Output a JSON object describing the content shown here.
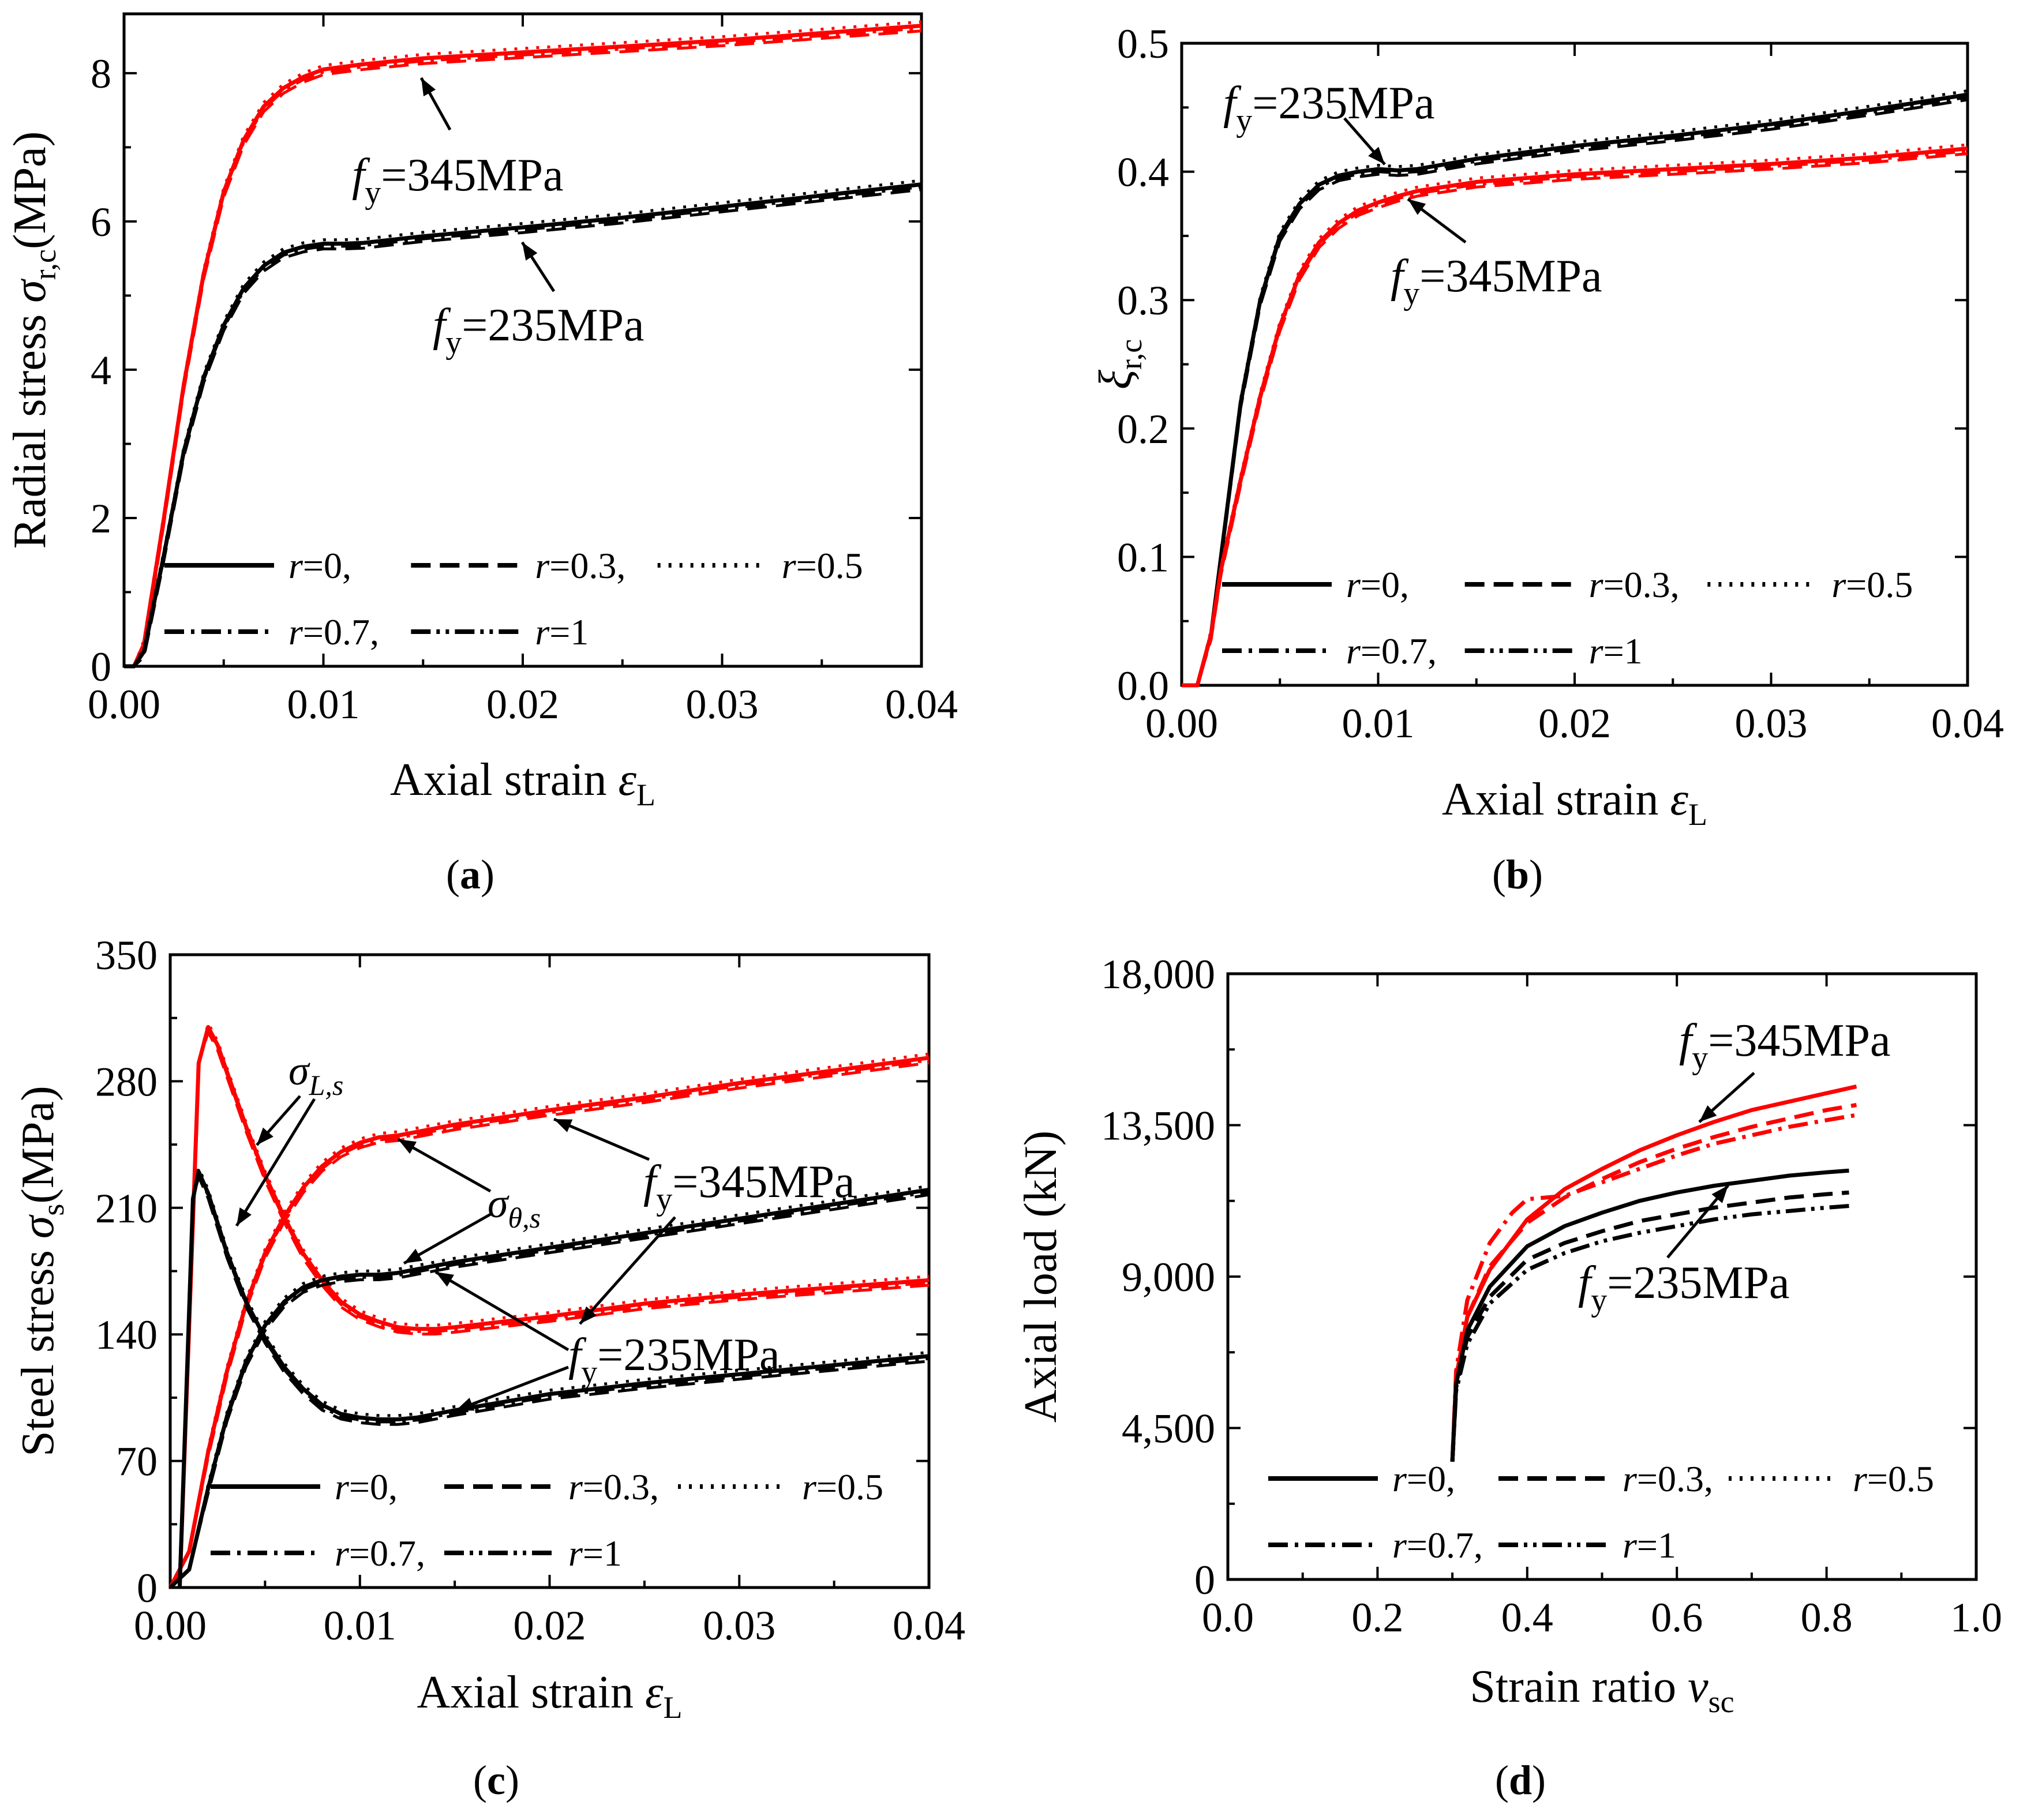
{
  "colors": {
    "black": "#000000",
    "red": "#ff0000"
  },
  "chart_data": [
    {
      "id": "a",
      "type": "line",
      "panel_label": "a",
      "xlabel": "Axial strain ",
      "xlabel_symbol": "ε",
      "xlabel_sub": "L",
      "ylabel": "Radial stress ",
      "ylabel_symbol": "σ",
      "ylabel_sub": "r,c",
      "ylabel_unit": "(MPa)",
      "xlim": [
        0,
        0.04
      ],
      "ylim": [
        0,
        8.8
      ],
      "xticks": [
        0,
        0.01,
        0.02,
        0.03,
        0.04
      ],
      "xtick_labels": [
        "0.00",
        "0.01",
        "0.02",
        "0.03",
        "0.04"
      ],
      "yticks": [
        0,
        2,
        4,
        6,
        8
      ],
      "ytick_labels": [
        "0",
        "2",
        "4",
        "6",
        "8"
      ],
      "legend": {
        "row1": [
          {
            "name": "r",
            "value": "=0,"
          },
          {
            "name": "r",
            "value": "=0.3,"
          },
          {
            "name": "r",
            "value": "=0.5"
          }
        ],
        "row2": [
          {
            "name": "r",
            "value": "=0.7,"
          },
          {
            "name": "r",
            "value": "=1"
          }
        ]
      },
      "annotations": [
        {
          "f": "f",
          "sub": "y",
          "text": "=345MPa"
        },
        {
          "f": "f",
          "sub": "y",
          "text": "=235MPa"
        }
      ],
      "series": [
        {
          "name": "fy=345MPa",
          "color": "red",
          "x": [
            0,
            0.0005,
            0.001,
            0.002,
            0.003,
            0.004,
            0.005,
            0.006,
            0.007,
            0.008,
            0.009,
            0.01,
            0.012,
            0.015,
            0.02,
            0.025,
            0.03,
            0.035,
            0.04
          ],
          "y": [
            0,
            0,
            0.3,
            2.0,
            3.8,
            5.3,
            6.4,
            7.1,
            7.55,
            7.8,
            7.95,
            8.05,
            8.12,
            8.2,
            8.28,
            8.36,
            8.44,
            8.54,
            8.64
          ]
        },
        {
          "name": "fy=235MPa",
          "color": "black",
          "x": [
            0,
            0.0005,
            0.001,
            0.002,
            0.003,
            0.004,
            0.005,
            0.006,
            0.007,
            0.008,
            0.009,
            0.01,
            0.011,
            0.012,
            0.015,
            0.02,
            0.025,
            0.03,
            0.035,
            0.04
          ],
          "y": [
            0,
            0,
            0.2,
            1.5,
            2.9,
            3.9,
            4.6,
            5.1,
            5.4,
            5.58,
            5.66,
            5.7,
            5.7,
            5.71,
            5.8,
            5.92,
            6.05,
            6.2,
            6.35,
            6.5
          ]
        }
      ]
    },
    {
      "id": "b",
      "type": "line",
      "panel_label": "b",
      "xlabel": "Axial strain ",
      "xlabel_symbol": "ε",
      "xlabel_sub": "L",
      "ylabel": "",
      "ylabel_symbol": "ξ",
      "ylabel_sub": "r,c",
      "ylabel_unit": "",
      "xlim": [
        0,
        0.04
      ],
      "ylim": [
        0,
        0.5
      ],
      "xticks": [
        0,
        0.01,
        0.02,
        0.03,
        0.04
      ],
      "xtick_labels": [
        "0.00",
        "0.01",
        "0.02",
        "0.03",
        "0.04"
      ],
      "yticks": [
        0,
        0.1,
        0.2,
        0.3,
        0.4,
        0.5
      ],
      "ytick_labels": [
        "0.0",
        "0.1",
        "0.2",
        "0.3",
        "0.4",
        "0.5"
      ],
      "legend": {
        "row1": [
          {
            "name": "r",
            "value": "=0,"
          },
          {
            "name": "r",
            "value": "=0.3,"
          },
          {
            "name": "r",
            "value": "=0.5"
          }
        ],
        "row2": [
          {
            "name": "r",
            "value": "=0.7,"
          },
          {
            "name": "r",
            "value": "=1"
          }
        ]
      },
      "annotations": [
        {
          "f": "f",
          "sub": "y",
          "text": "=235MPa"
        },
        {
          "f": "f",
          "sub": "y",
          "text": "=345MPa"
        }
      ],
      "series": [
        {
          "name": "fy=235MPa",
          "color": "black",
          "x": [
            0,
            0.0008,
            0.0015,
            0.002,
            0.003,
            0.004,
            0.005,
            0.006,
            0.007,
            0.008,
            0.009,
            0.01,
            0.011,
            0.012,
            0.015,
            0.02,
            0.025,
            0.03,
            0.035,
            0.04
          ],
          "y": [
            0,
            0,
            0.04,
            0.1,
            0.22,
            0.3,
            0.35,
            0.375,
            0.39,
            0.397,
            0.4,
            0.402,
            0.401,
            0.402,
            0.41,
            0.42,
            0.428,
            0.437,
            0.448,
            0.46
          ]
        },
        {
          "name": "fy=345MPa",
          "color": "red",
          "x": [
            0,
            0.0008,
            0.0015,
            0.002,
            0.003,
            0.004,
            0.005,
            0.006,
            0.007,
            0.008,
            0.009,
            0.01,
            0.011,
            0.012,
            0.015,
            0.02,
            0.025,
            0.03,
            0.035,
            0.04
          ],
          "y": [
            0,
            0,
            0.04,
            0.09,
            0.16,
            0.225,
            0.28,
            0.32,
            0.345,
            0.36,
            0.37,
            0.376,
            0.381,
            0.385,
            0.392,
            0.398,
            0.402,
            0.406,
            0.411,
            0.418
          ]
        }
      ]
    },
    {
      "id": "c",
      "type": "line",
      "panel_label": "c",
      "xlabel": "Axial strain ",
      "xlabel_symbol": "ε",
      "xlabel_sub": "L",
      "ylabel": "Steel stress ",
      "ylabel_symbol": "σ",
      "ylabel_sub": "s",
      "ylabel_unit": "(MPa)",
      "xlim": [
        0,
        0.04
      ],
      "ylim": [
        0,
        350
      ],
      "xticks": [
        0,
        0.01,
        0.02,
        0.03,
        0.04
      ],
      "xtick_labels": [
        "0.00",
        "0.01",
        "0.02",
        "0.03",
        "0.04"
      ],
      "yticks": [
        0,
        70,
        140,
        210,
        280,
        350
      ],
      "ytick_labels": [
        "0",
        "70",
        "140",
        "210",
        "280",
        "350"
      ],
      "legend": {
        "row1": [
          {
            "name": "r",
            "value": "=0,"
          },
          {
            "name": "r",
            "value": "=0.3,"
          },
          {
            "name": "r",
            "value": "=0.5"
          }
        ],
        "row2": [
          {
            "name": "r",
            "value": "=0.7,"
          },
          {
            "name": "r",
            "value": "=1"
          }
        ]
      },
      "annotations": [
        {
          "sym": "σ",
          "sub": "L,s"
        },
        {
          "sym": "σ",
          "sub": "θ,s"
        },
        {
          "f": "f",
          "sub": "y",
          "text": "=345MPa"
        },
        {
          "f": "f",
          "sub": "y",
          "text": "=235MPa"
        }
      ],
      "series": [
        {
          "name": "sigma_theta fy=345MPa",
          "color": "red",
          "x": [
            0,
            0.001,
            0.002,
            0.003,
            0.004,
            0.005,
            0.006,
            0.007,
            0.008,
            0.009,
            0.01,
            0.011,
            0.012,
            0.015,
            0.02,
            0.025,
            0.03,
            0.035,
            0.04
          ],
          "y": [
            0,
            20,
            75,
            120,
            157,
            185,
            205,
            221,
            233,
            241,
            246,
            249,
            250,
            256,
            264,
            271,
            279,
            286,
            293
          ]
        },
        {
          "name": "sigma_L fy=345MPa",
          "color": "red",
          "x": [
            0.0005,
            0.0015,
            0.002,
            0.0025,
            0.003,
            0.004,
            0.005,
            0.006,
            0.007,
            0.008,
            0.009,
            0.01,
            0.011,
            0.012,
            0.013,
            0.014,
            0.015,
            0.02,
            0.025,
            0.03,
            0.035,
            0.04
          ],
          "y": [
            0,
            290,
            310,
            300,
            285,
            255,
            228,
            205,
            185,
            170,
            158,
            151,
            147,
            144,
            143,
            143,
            144,
            150,
            157,
            162,
            166,
            170
          ]
        },
        {
          "name": "sigma_theta fy=235MPa",
          "color": "black",
          "x": [
            0,
            0.001,
            0.002,
            0.003,
            0.004,
            0.005,
            0.006,
            0.007,
            0.008,
            0.009,
            0.01,
            0.011,
            0.012,
            0.015,
            0.02,
            0.025,
            0.03,
            0.035,
            0.04
          ],
          "y": [
            0,
            10,
            55,
            95,
            125,
            145,
            158,
            166,
            170,
            172,
            173,
            173,
            174,
            180,
            188,
            196,
            204,
            212,
            220
          ]
        },
        {
          "name": "sigma_L fy=235MPa",
          "color": "black",
          "x": [
            0.0005,
            0.0012,
            0.0015,
            0.002,
            0.003,
            0.004,
            0.005,
            0.006,
            0.007,
            0.008,
            0.009,
            0.01,
            0.011,
            0.012,
            0.013,
            0.015,
            0.02,
            0.025,
            0.03,
            0.035,
            0.04
          ],
          "y": [
            0,
            215,
            230,
            218,
            185,
            158,
            138,
            122,
            110,
            101,
            96,
            94,
            93,
            93,
            94,
            98,
            107,
            113,
            118,
            123,
            128
          ]
        }
      ]
    },
    {
      "id": "d",
      "type": "line",
      "panel_label": "d",
      "xlabel": "Strain ratio ",
      "xlabel_symbol": "ν",
      "xlabel_sub": "sc",
      "ylabel": "Axial load (kN)",
      "ylabel_symbol": "",
      "ylabel_sub": "",
      "ylabel_unit": "",
      "xlim": [
        0,
        1.0
      ],
      "ylim": [
        0,
        18000
      ],
      "xticks": [
        0,
        0.2,
        0.4,
        0.6,
        0.8,
        1.0
      ],
      "xtick_labels": [
        "0.0",
        "0.2",
        "0.4",
        "0.6",
        "0.8",
        "1.0"
      ],
      "yticks": [
        0,
        4500,
        9000,
        13500,
        18000
      ],
      "ytick_labels": [
        "0",
        "4,500",
        "9,000",
        "13,500",
        "18,000"
      ],
      "legend": {
        "row1": [
          {
            "name": "r",
            "value": "=0,"
          },
          {
            "name": "r",
            "value": "=0.3,"
          },
          {
            "name": "r",
            "value": "=0.5"
          }
        ],
        "row2": [
          {
            "name": "r",
            "value": "=0.7,"
          },
          {
            "name": "r",
            "value": "=1"
          }
        ]
      },
      "annotations": [
        {
          "f": "f",
          "sub": "y",
          "text": "=345MPa"
        },
        {
          "f": "f",
          "sub": "y",
          "text": "=235MPa"
        }
      ],
      "series": [
        {
          "name": "fy=345MPa r=0",
          "color": "red",
          "dash": "solid",
          "x": [
            0.3,
            0.305,
            0.32,
            0.35,
            0.4,
            0.45,
            0.5,
            0.55,
            0.6,
            0.65,
            0.7,
            0.75,
            0.8,
            0.84
          ],
          "y": [
            3500,
            6000,
            7800,
            9200,
            10700,
            11600,
            12200,
            12750,
            13200,
            13600,
            13950,
            14200,
            14450,
            14650
          ]
        },
        {
          "name": "fy=345MPa r=0.3",
          "color": "red",
          "dash": "dash",
          "x": [
            0.3,
            0.305,
            0.32,
            0.35,
            0.4,
            0.45,
            0.5,
            0.55,
            0.6,
            0.65,
            0.7,
            0.75,
            0.8,
            0.84
          ],
          "y": [
            3500,
            6000,
            7800,
            9300,
            10600,
            11350,
            11900,
            12400,
            12800,
            13150,
            13450,
            13700,
            13950,
            14100
          ]
        },
        {
          "name": "fy=345MPa r=0.7",
          "color": "red",
          "dash": "dashdot",
          "x": [
            0.3,
            0.305,
            0.32,
            0.35,
            0.38,
            0.4,
            0.45,
            0.5,
            0.55,
            0.6,
            0.65,
            0.7,
            0.75,
            0.8,
            0.84
          ],
          "y": [
            3500,
            6200,
            8300,
            10000,
            10900,
            11300,
            11400,
            11800,
            12200,
            12600,
            12950,
            13200,
            13450,
            13650,
            13800
          ]
        },
        {
          "name": "fy=235MPa r=0",
          "color": "black",
          "dash": "solid",
          "x": [
            0.3,
            0.305,
            0.32,
            0.35,
            0.4,
            0.45,
            0.5,
            0.55,
            0.6,
            0.65,
            0.7,
            0.75,
            0.8,
            0.83
          ],
          "y": [
            3500,
            5800,
            7400,
            8700,
            9900,
            10500,
            10900,
            11250,
            11500,
            11700,
            11850,
            12000,
            12100,
            12150
          ]
        },
        {
          "name": "fy=235MPa r=0.3",
          "color": "black",
          "dash": "dash",
          "x": [
            0.3,
            0.305,
            0.32,
            0.35,
            0.4,
            0.45,
            0.5,
            0.55,
            0.6,
            0.65,
            0.7,
            0.75,
            0.8,
            0.83
          ],
          "y": [
            3500,
            5700,
            7200,
            8400,
            9500,
            10000,
            10350,
            10650,
            10850,
            11050,
            11200,
            11350,
            11450,
            11500
          ]
        },
        {
          "name": "fy=235MPa r=1",
          "color": "black",
          "dash": "dashdotdot",
          "x": [
            0.3,
            0.305,
            0.32,
            0.35,
            0.4,
            0.45,
            0.5,
            0.55,
            0.6,
            0.65,
            0.7,
            0.75,
            0.8,
            0.83
          ],
          "y": [
            3500,
            5600,
            7000,
            8200,
            9200,
            9700,
            10050,
            10300,
            10500,
            10700,
            10850,
            10950,
            11050,
            11100
          ]
        }
      ]
    }
  ]
}
